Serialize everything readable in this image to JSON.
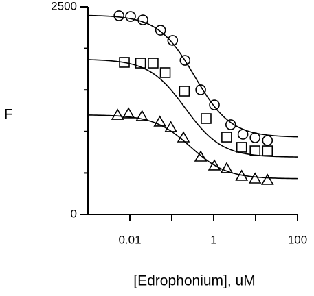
{
  "chart_data": {
    "type": "scatter",
    "x_label": "[Edrophonium], uM",
    "y_label": "F",
    "xscale": "log",
    "xlim": [
      0.001,
      100
    ],
    "xticks": [
      0.01,
      1,
      100
    ],
    "xminorticks": [
      0.1,
      10
    ],
    "ylim": [
      0,
      2500
    ],
    "yticks": [
      0,
      2500
    ],
    "yminorticks": [
      500,
      1000,
      1500,
      2000
    ],
    "series": [
      {
        "marker": "circle",
        "color": "#000000",
        "x": [
          0.0055,
          0.0104,
          0.0205,
          0.054,
          0.105,
          0.207,
          0.49,
          1.04,
          2.55,
          5.0,
          9.7,
          19.2
        ],
        "values": [
          2393,
          2384,
          2343,
          2219,
          2096,
          1856,
          1502,
          1320,
          1081,
          965,
          924,
          891
        ],
        "fit": {
          "top": 2400,
          "bottom": 930,
          "ec50": 0.35,
          "hill": 1
        }
      },
      {
        "marker": "square",
        "color": "#000000",
        "x": [
          0.0074,
          0.018,
          0.036,
          0.07,
          0.2,
          0.66,
          2.04,
          4.65,
          9.7,
          19.2
        ],
        "values": [
          1832,
          1823,
          1823,
          1708,
          1485,
          1155,
          932,
          809,
          767,
          767
        ],
        "fit": {
          "top": 1870,
          "bottom": 690,
          "ec50": 0.21,
          "hill": 1
        }
      },
      {
        "marker": "triangle",
        "color": "#000000",
        "x": [
          0.0051,
          0.0093,
          0.0195,
          0.052,
          0.095,
          0.19,
          0.49,
          1.04,
          2.04,
          4.65,
          9.7,
          19.2
        ],
        "values": [
          1196,
          1213,
          1180,
          1114,
          1048,
          924,
          693,
          586,
          553,
          462,
          429,
          413
        ],
        "fit": {
          "top": 1200,
          "bottom": 430,
          "ec50": 0.28,
          "hill": 1
        }
      }
    ]
  }
}
